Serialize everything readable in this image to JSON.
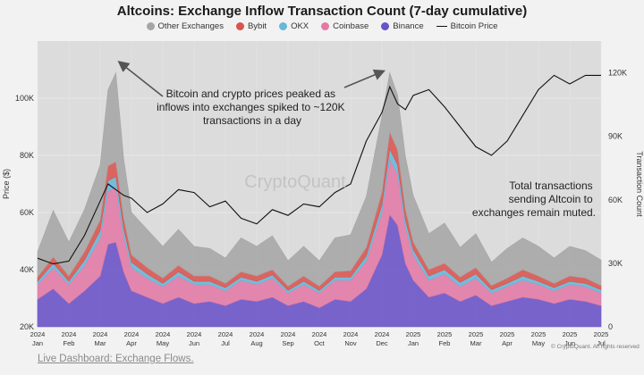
{
  "chart_data": {
    "type": "area",
    "title": "Altcoins: Exchange Inflow Transaction Count (7-day cumulative)",
    "ylabel_left": "Price ($)",
    "ylabel_right": "Transaction Count",
    "ylim_price": [
      20000,
      120000
    ],
    "ylim_count": [
      0,
      135000
    ],
    "yticks_left": [
      "20K",
      "40K",
      "60K",
      "80K",
      "100K"
    ],
    "yticks_right": [
      "0",
      "30K",
      "60K",
      "90K",
      "120K"
    ],
    "xticks": [
      {
        "top": "2024",
        "bottom": "Jan"
      },
      {
        "top": "2024",
        "bottom": "Feb"
      },
      {
        "top": "2024",
        "bottom": "Mar"
      },
      {
        "top": "2024",
        "bottom": "Apr"
      },
      {
        "top": "2024",
        "bottom": "May"
      },
      {
        "top": "2024",
        "bottom": "Jun"
      },
      {
        "top": "2024",
        "bottom": "Jul"
      },
      {
        "top": "2024",
        "bottom": "Aug"
      },
      {
        "top": "2024",
        "bottom": "Sep"
      },
      {
        "top": "2024",
        "bottom": "Oct"
      },
      {
        "top": "2024",
        "bottom": "Nov"
      },
      {
        "top": "2024",
        "bottom": "Dec"
      },
      {
        "top": "2025",
        "bottom": "Jan"
      },
      {
        "top": "2025",
        "bottom": "Feb"
      },
      {
        "top": "2025",
        "bottom": "Mar"
      },
      {
        "top": "2025",
        "bottom": "Apr"
      },
      {
        "top": "2025",
        "bottom": "May"
      },
      {
        "top": "2025",
        "bottom": "Jun"
      },
      {
        "top": "2025",
        "bottom": "Jul"
      }
    ],
    "x": [
      0,
      0.5,
      1,
      1.5,
      2,
      2.25,
      2.5,
      2.75,
      3,
      3.5,
      4,
      4.5,
      5,
      5.5,
      6,
      6.5,
      7,
      7.5,
      8,
      8.5,
      9,
      9.5,
      10,
      10.5,
      11,
      11.25,
      11.5,
      11.75,
      12,
      12.5,
      13,
      13.5,
      14,
      14.5,
      15,
      15.5,
      16,
      16.5,
      17,
      17.5,
      18
    ],
    "series": [
      {
        "name": "Binance",
        "color": "#6a52c8",
        "values": [
          13000,
          18000,
          11000,
          17000,
          24000,
          39000,
          40000,
          26000,
          17000,
          14000,
          11000,
          14000,
          11000,
          12000,
          10000,
          13000,
          12000,
          14000,
          10000,
          12000,
          9000,
          13000,
          12000,
          18000,
          34000,
          53000,
          48000,
          30000,
          22000,
          14000,
          16000,
          12000,
          15000,
          10000,
          12000,
          14000,
          13000,
          11000,
          13000,
          12000,
          10000
        ]
      },
      {
        "name": "Coinbase",
        "color": "#e37aa6",
        "values": [
          7000,
          10000,
          9000,
          12000,
          18000,
          25000,
          26000,
          17000,
          11000,
          9000,
          8000,
          10000,
          9000,
          8000,
          7000,
          9000,
          8000,
          9000,
          6000,
          8000,
          7000,
          9000,
          10000,
          13000,
          20000,
          26000,
          24000,
          17000,
          12000,
          8000,
          9000,
          7000,
          8000,
          6000,
          7000,
          8000,
          7000,
          6000,
          7000,
          7000,
          6000
        ]
      },
      {
        "name": "OKX",
        "color": "#67b7d8",
        "values": [
          1500,
          2000,
          1500,
          2500,
          3500,
          5000,
          5000,
          3500,
          2500,
          2000,
          1500,
          2000,
          1500,
          1500,
          1500,
          1500,
          1500,
          1500,
          1200,
          1500,
          1200,
          1500,
          1500,
          2500,
          3500,
          5000,
          4500,
          3500,
          2500,
          2000,
          2000,
          2000,
          2000,
          1500,
          1500,
          2000,
          1500,
          1500,
          1500,
          1500,
          1500
        ]
      },
      {
        "name": "Bybit",
        "color": "#d9544f",
        "values": [
          2000,
          3000,
          2500,
          4000,
          5000,
          7000,
          7000,
          5000,
          3500,
          3000,
          2500,
          3000,
          2500,
          2500,
          2000,
          2500,
          2500,
          2500,
          2000,
          2500,
          2000,
          2500,
          3000,
          4000,
          6000,
          8000,
          7000,
          5000,
          3500,
          3000,
          3000,
          2500,
          3000,
          2000,
          2500,
          3000,
          2500,
          2000,
          2500,
          2500,
          2000
        ]
      },
      {
        "name": "Other Exchanges",
        "color": "#a6a6a6",
        "values": [
          12000,
          22000,
          16000,
          20000,
          26000,
          36000,
          42000,
          28000,
          20000,
          18000,
          15000,
          17000,
          14000,
          13000,
          12000,
          16000,
          14000,
          16000,
          12000,
          14000,
          12000,
          16000,
          17000,
          24000,
          36000,
          28000,
          26000,
          25000,
          22000,
          17000,
          19000,
          14000,
          16000,
          11000,
          14000,
          15000,
          14000,
          12000,
          14000,
          13000,
          12000
        ]
      }
    ],
    "price_series": {
      "name": "Bitcoin Price",
      "color": "#111111",
      "values": [
        44000,
        42000,
        43000,
        52000,
        64000,
        70000,
        68000,
        66000,
        65000,
        60000,
        63000,
        68000,
        67000,
        62000,
        64000,
        58000,
        56000,
        61000,
        59000,
        63000,
        62000,
        67000,
        70000,
        85000,
        95000,
        104000,
        98000,
        96000,
        101000,
        103000,
        97000,
        90000,
        83000,
        80000,
        85000,
        94000,
        103000,
        108000,
        105000,
        108000,
        108000
      ]
    }
  },
  "legend": [
    {
      "label": "Other Exchanges",
      "color": "#a6a6a6",
      "shape": "dot"
    },
    {
      "label": "Bybit",
      "color": "#d9544f",
      "shape": "dot"
    },
    {
      "label": "OKX",
      "color": "#67b7d8",
      "shape": "dot"
    },
    {
      "label": "Coinbase",
      "color": "#e37aa6",
      "shape": "dot"
    },
    {
      "label": "Binance",
      "color": "#6a52c8",
      "shape": "dot"
    },
    {
      "label": "Bitcoin Price",
      "color": "#111111",
      "shape": "line"
    }
  ],
  "annotations": {
    "peak_note": [
      "Bitcoin and crypto prices peaked as",
      "inflows into exchanges spiked to ~120K",
      "transactions in a day"
    ],
    "muted_note": [
      "Total transactions",
      "sending Altcoin  to",
      "exchanges remain muted."
    ]
  },
  "watermark": "CryptoQuant",
  "copyright": "© CryptoQuant. All rights reserved",
  "footer_link": "Live Dashboard: Exchange Flows."
}
